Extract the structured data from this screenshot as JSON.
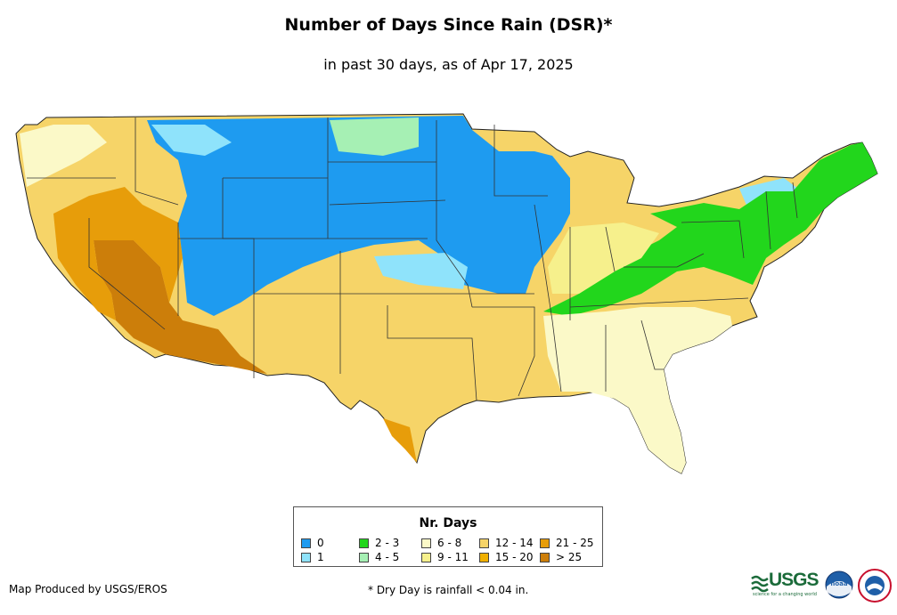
{
  "title": "Number of Days Since Rain (DSR)*",
  "subtitle": "in past 30 days, as of Apr 17, 2025",
  "legend": {
    "title": "Nr. Days",
    "items": [
      {
        "label": "0",
        "color": "#1e9bf0"
      },
      {
        "label": "1",
        "color": "#8fe3fb"
      },
      {
        "label": "2 - 3",
        "color": "#22d61c"
      },
      {
        "label": "4 - 5",
        "color": "#a6f0b4"
      },
      {
        "label": "6 - 8",
        "color": "#fbf9c8"
      },
      {
        "label": "9 - 11",
        "color": "#f6f08c"
      },
      {
        "label": "12 - 14",
        "color": "#f6d468"
      },
      {
        "label": "15 - 20",
        "color": "#f0b000"
      },
      {
        "label": "21 - 25",
        "color": "#e79d0a"
      },
      {
        "label": "> 25",
        "color": "#cc7e0a"
      }
    ]
  },
  "footer": {
    "producer": "Map Produced by USGS/EROS",
    "note": "* Dry Day is rainfall < 0.04 in."
  },
  "logos": {
    "usgs": "USGS",
    "usgs_tagline": "science for a changing world",
    "noaa": "noaa"
  }
}
